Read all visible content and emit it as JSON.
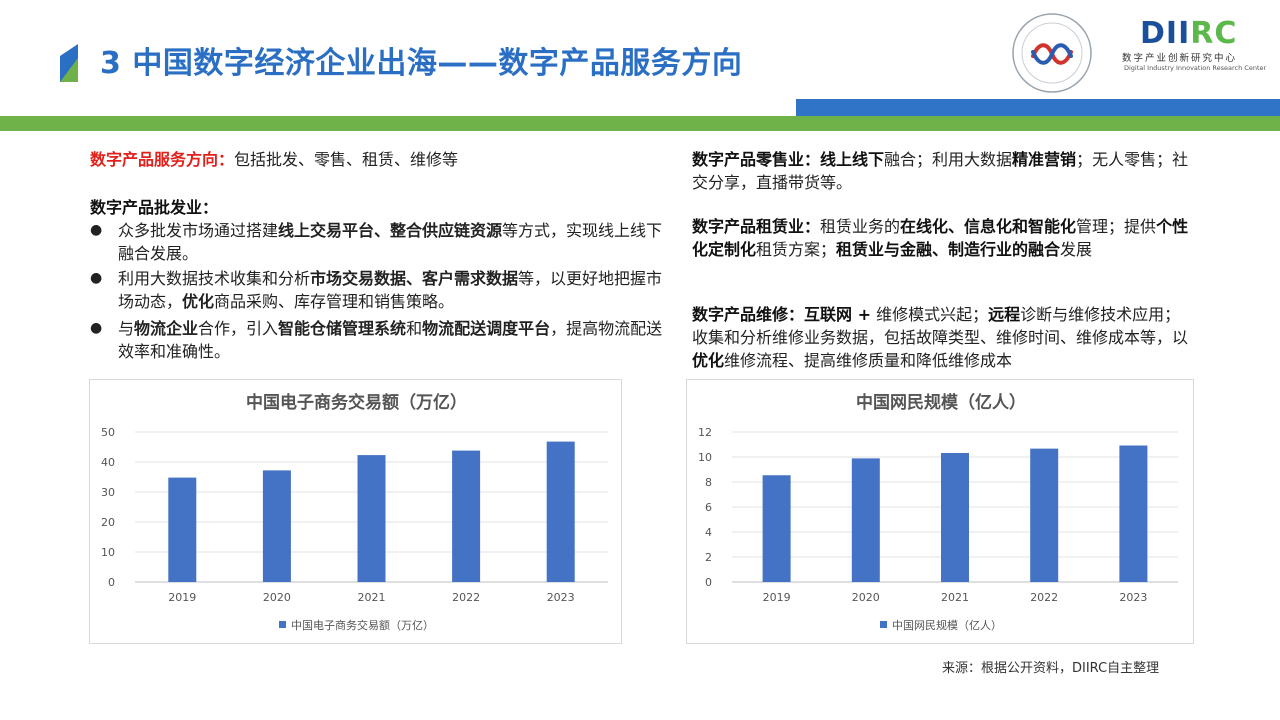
{
  "header": {
    "title": "3 中国数字经济企业出海——数字产品服务方向",
    "logo_main_prefix": "DII",
    "logo_main_suffix": "RC",
    "logo_sub": "数字产业创新研究中心",
    "logo_sub_en": "Digital Industry Innovation Research Center"
  },
  "colors": {
    "title_blue": "#2a6fc4",
    "accent_red": "#e0211c",
    "bar_blue": "#4472c4",
    "band_blue": "#2f74c6",
    "band_green": "#6fb24a"
  },
  "left": {
    "intro_label": "数字产品服务方向：",
    "intro_text": "包括批发、零售、租赁、维修等",
    "wholesale_title": "数字产品批发业：",
    "bullets": [
      {
        "t1": "众多批发市场通过搭建",
        "b1": "线上交易平台、整合供应链资源",
        "t2": "等方式，实现线上线下融合发展。"
      },
      {
        "t1": "利用大数据技术收集和分析",
        "b1": "市场交易数据、客户需求数据",
        "t2": "等，以更好地把握市场动态，",
        "b2": "优化",
        "t3": "商品采购、库存管理和销售策略。"
      },
      {
        "t1": "与",
        "b1": "物流企业",
        "t2": "合作，引入",
        "b2": "智能仓储管理系统",
        "t3": "和",
        "b3": "物流配送调度平台",
        "t4": "，提高物流配送效率和准确性。"
      }
    ]
  },
  "right": {
    "retail": {
      "label": "数字产品零售业：",
      "b1": "线上线下",
      "t1": "融合；利用大数据",
      "b2": "精准营销",
      "t2": "；无人零售；社交分享，直播带货等。"
    },
    "rental": {
      "label": "数字产品租赁业：",
      "t1": "租赁业务的",
      "b1": "在线化、信息化和智能化",
      "t2": "管理；提供",
      "b2": "个性化定制化",
      "t3": "租赁方案；",
      "b3": "租赁业与金融、制造行业的融合",
      "t4": "发展"
    },
    "repair": {
      "label": "数字产品维修：",
      "b1": "互联网 +",
      "t1": " 维修模式兴起；",
      "b2": "远程",
      "t2": "诊断与维修技术应用；收集和分析维修业务数据，包括故障类型、维修时间、维修成本等，以",
      "b3": "优化",
      "t3": "维修流程、提高维修质量和降低维修成本"
    }
  },
  "chart_data": [
    {
      "type": "bar",
      "title": "中国电子商务交易额（万亿）",
      "categories": [
        "2019",
        "2020",
        "2021",
        "2022",
        "2023"
      ],
      "series": [
        {
          "name": "中国电子商务交易额（万亿）",
          "values": [
            34.8,
            37.2,
            42.3,
            43.8,
            46.8
          ]
        }
      ],
      "ylim": [
        0,
        50
      ],
      "yticks": [
        0,
        10,
        20,
        30,
        40,
        50
      ],
      "grid": true,
      "legend": "bottom",
      "color": "#4472c4"
    },
    {
      "type": "bar",
      "title": "中国网民规模（亿人）",
      "categories": [
        "2019",
        "2020",
        "2021",
        "2022",
        "2023"
      ],
      "series": [
        {
          "name": "中国网民规模（亿人）",
          "values": [
            8.54,
            9.89,
            10.32,
            10.67,
            10.92
          ]
        }
      ],
      "ylim": [
        0,
        12
      ],
      "yticks": [
        0,
        2,
        4,
        6,
        8,
        10,
        12
      ],
      "grid": true,
      "legend": "bottom",
      "color": "#4472c4"
    }
  ],
  "footer": {
    "source": "来源：根据公开资料，DIIRC自主整理"
  }
}
